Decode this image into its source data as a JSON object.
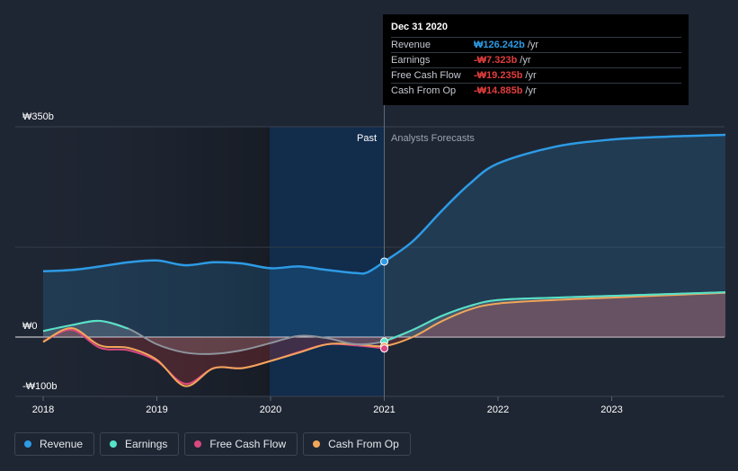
{
  "tooltip": {
    "date": "Dec 31 2020",
    "rows": [
      {
        "label": "Revenue",
        "value": "₩126.242b",
        "unit": "/yr",
        "color": "#2d9be5"
      },
      {
        "label": "Earnings",
        "value": "-₩7.323b",
        "unit": "/yr",
        "color": "#e23d3d"
      },
      {
        "label": "Free Cash Flow",
        "value": "-₩19.235b",
        "unit": "/yr",
        "color": "#e23d3d"
      },
      {
        "label": "Cash From Op",
        "value": "-₩14.885b",
        "unit": "/yr",
        "color": "#e23d3d"
      }
    ]
  },
  "legend": [
    {
      "label": "Revenue",
      "color": "#2d9be5"
    },
    {
      "label": "Earnings",
      "color": "#56e3c8"
    },
    {
      "label": "Free Cash Flow",
      "color": "#d9487f"
    },
    {
      "label": "Cash From Op",
      "color": "#f2a65a"
    }
  ],
  "chart_data": {
    "type": "line",
    "currency_symbol": "₩",
    "y_tick_labels": [
      "₩350b",
      "₩0",
      "-₩100b"
    ],
    "x_tick_labels": [
      "2018",
      "2019",
      "2020",
      "2021",
      "2022",
      "2023"
    ],
    "ylim": [
      -100,
      350
    ],
    "xlim": [
      2018.0,
      2024.0
    ],
    "past_label": "Past",
    "forecast_label": "Analysts Forecasts",
    "divider_x": 2021.0,
    "series": [
      {
        "name": "Revenue",
        "color": "#2d9be5",
        "points": [
          [
            2018.0,
            110
          ],
          [
            2018.25,
            112
          ],
          [
            2018.5,
            118
          ],
          [
            2018.75,
            125
          ],
          [
            2019.0,
            128
          ],
          [
            2019.25,
            120
          ],
          [
            2019.5,
            125
          ],
          [
            2019.75,
            123
          ],
          [
            2020.0,
            115
          ],
          [
            2020.25,
            118
          ],
          [
            2020.5,
            112
          ],
          [
            2020.75,
            107
          ],
          [
            2020.85,
            108
          ],
          [
            2021.0,
            126
          ],
          [
            2021.25,
            160
          ],
          [
            2021.5,
            210
          ],
          [
            2021.75,
            256
          ],
          [
            2022.0,
            290
          ],
          [
            2022.5,
            318
          ],
          [
            2023.0,
            330
          ],
          [
            2023.5,
            335
          ],
          [
            2024.0,
            338
          ]
        ]
      },
      {
        "name": "Earnings",
        "color": "#56e3c8",
        "points": [
          [
            2018.0,
            10
          ],
          [
            2018.25,
            20
          ],
          [
            2018.5,
            27
          ],
          [
            2018.75,
            14
          ],
          [
            2019.0,
            -12
          ],
          [
            2019.25,
            -26
          ],
          [
            2019.5,
            -28
          ],
          [
            2019.75,
            -22
          ],
          [
            2020.0,
            -10
          ],
          [
            2020.25,
            2
          ],
          [
            2020.5,
            -2
          ],
          [
            2020.75,
            -12
          ],
          [
            2021.0,
            -7
          ],
          [
            2021.25,
            12
          ],
          [
            2021.5,
            35
          ],
          [
            2021.75,
            52
          ],
          [
            2022.0,
            62
          ],
          [
            2022.5,
            66
          ],
          [
            2023.0,
            69
          ],
          [
            2023.5,
            72
          ],
          [
            2024.0,
            75
          ]
        ]
      },
      {
        "name": "Free Cash Flow",
        "color": "#d9487f",
        "points": [
          [
            2018.0,
            -8
          ],
          [
            2018.25,
            12
          ],
          [
            2018.5,
            -18
          ],
          [
            2018.75,
            -22
          ],
          [
            2019.0,
            -40
          ],
          [
            2019.25,
            -78
          ],
          [
            2019.5,
            -52
          ],
          [
            2019.75,
            -52
          ],
          [
            2020.0,
            -40
          ],
          [
            2020.25,
            -25
          ],
          [
            2020.5,
            -12
          ],
          [
            2020.75,
            -14
          ],
          [
            2021.0,
            -19
          ]
        ]
      },
      {
        "name": "Cash From Op",
        "color": "#f2a65a",
        "points": [
          [
            2018.0,
            -8
          ],
          [
            2018.25,
            15
          ],
          [
            2018.5,
            -14
          ],
          [
            2018.75,
            -18
          ],
          [
            2019.0,
            -38
          ],
          [
            2019.25,
            -82
          ],
          [
            2019.5,
            -52
          ],
          [
            2019.75,
            -52
          ],
          [
            2020.0,
            -40
          ],
          [
            2020.25,
            -26
          ],
          [
            2020.5,
            -12
          ],
          [
            2020.75,
            -12
          ],
          [
            2021.0,
            -15
          ],
          [
            2021.25,
            0
          ],
          [
            2021.5,
            26
          ],
          [
            2021.75,
            46
          ],
          [
            2022.0,
            56
          ],
          [
            2022.5,
            62
          ],
          [
            2023.0,
            66
          ],
          [
            2023.5,
            70
          ],
          [
            2024.0,
            74
          ]
        ]
      }
    ]
  }
}
